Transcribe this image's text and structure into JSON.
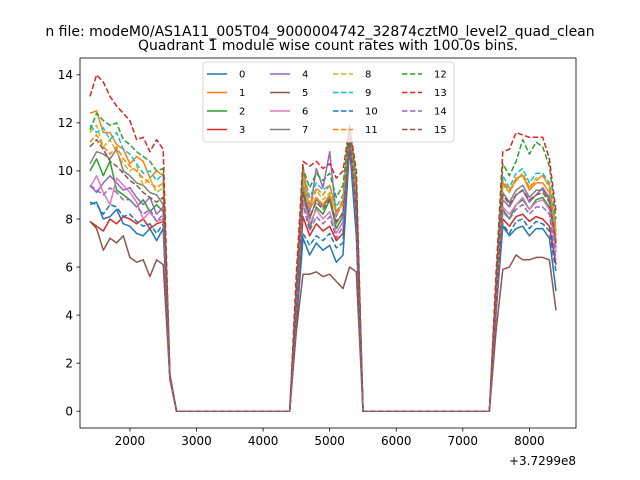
{
  "chart_data": {
    "type": "line",
    "suptitle": "n file: modeM0/AS1A11_005T04_9000004742_32874cztM0_level2_quad_clean",
    "title": "Quadrant 1 module wise count rates with 100.0s bins.",
    "xlabel": "",
    "ylabel": "",
    "x_offset_label": "+3.7299e8",
    "xlim": [
      1250,
      8700
    ],
    "ylim": [
      -0.7,
      14.7
    ],
    "xticks": [
      2000,
      3000,
      4000,
      5000,
      6000,
      7000,
      8000
    ],
    "yticks": [
      0,
      2,
      4,
      6,
      8,
      10,
      12,
      14
    ],
    "grid": false,
    "legend": {
      "position": "upper-center",
      "columns": 4
    },
    "x": [
      1400,
      1500,
      1600,
      1700,
      1800,
      1900,
      2000,
      2100,
      2200,
      2300,
      2400,
      2500,
      2600,
      2700,
      2800,
      2900,
      3000,
      3100,
      3200,
      3300,
      3400,
      3500,
      3600,
      3700,
      3800,
      3900,
      4000,
      4100,
      4200,
      4300,
      4400,
      4500,
      4600,
      4700,
      4800,
      4900,
      5000,
      5100,
      5200,
      5300,
      5400,
      5500,
      5600,
      5700,
      5800,
      5900,
      6000,
      6100,
      6200,
      6300,
      6400,
      6500,
      6600,
      6700,
      6800,
      6900,
      7000,
      7100,
      7200,
      7300,
      7400,
      7500,
      7600,
      7700,
      7800,
      7900,
      8000,
      8100,
      8200,
      8300,
      8400
    ],
    "series": [
      {
        "name": "0",
        "color": "#1f77b4",
        "dash": "solid",
        "on1": [
          8.6,
          8.7,
          8.0,
          8.1,
          8.4,
          7.8,
          7.7,
          7.4,
          7.3,
          7.6,
          7.1,
          7.6
        ],
        "on2": [
          6.6,
          7.2,
          6.5,
          7.0,
          6.7,
          6.9,
          6.2,
          6.5,
          11.0,
          7.3
        ],
        "on3": [
          7.5,
          7.7,
          7.3,
          7.6,
          7.7,
          7.3,
          7.6,
          7.6,
          7.2,
          5.0
        ]
      },
      {
        "name": "1",
        "color": "#ff7f0e",
        "dash": "solid",
        "on1": [
          12.4,
          12.5,
          11.6,
          11.6,
          11.1,
          10.9,
          10.3,
          10.6,
          10.4,
          9.7,
          10.0,
          9.8
        ],
        "on2": [
          9.0,
          9.7,
          8.4,
          8.9,
          8.6,
          9.0,
          8.3,
          8.6,
          11.2,
          9.4
        ],
        "on3": [
          9.0,
          9.5,
          9.1,
          9.7,
          9.8,
          9.2,
          9.5,
          9.5,
          9.1,
          7.3
        ]
      },
      {
        "name": "2",
        "color": "#2ca02c",
        "dash": "solid",
        "on1": [
          10.0,
          10.5,
          9.8,
          10.4,
          9.2,
          9.0,
          8.8,
          8.5,
          8.8,
          8.3,
          8.6,
          8.3
        ],
        "on2": [
          7.8,
          9.2,
          7.6,
          8.5,
          8.2,
          8.8,
          7.6,
          8.1,
          11.3,
          8.2
        ],
        "on3": [
          8.2,
          8.4,
          8.0,
          8.6,
          8.8,
          8.4,
          8.8,
          8.9,
          8.5,
          7.0
        ]
      },
      {
        "name": "3",
        "color": "#d62728",
        "dash": "solid",
        "on1": [
          7.9,
          7.7,
          7.5,
          8.0,
          7.8,
          8.1,
          8.0,
          7.8,
          8.0,
          7.6,
          7.8,
          7.9
        ],
        "on2": [
          7.2,
          8.1,
          7.3,
          7.8,
          7.5,
          7.7,
          7.1,
          7.4,
          11.1,
          7.8
        ],
        "on3": [
          7.6,
          8.0,
          7.7,
          8.1,
          8.2,
          7.9,
          8.1,
          8.0,
          7.7,
          6.1
        ]
      },
      {
        "name": "4",
        "color": "#9467bd",
        "dash": "solid",
        "on1": [
          9.4,
          9.1,
          9.5,
          9.8,
          9.5,
          9.2,
          9.3,
          8.9,
          8.6,
          8.9,
          8.2,
          8.5
        ],
        "on2": [
          8.5,
          10.2,
          8.3,
          10.1,
          9.3,
          10.8,
          8.1,
          8.8,
          11.6,
          8.7
        ],
        "on3": [
          8.4,
          8.8,
          8.5,
          9.0,
          9.2,
          8.7,
          9.0,
          9.3,
          8.9,
          6.8
        ]
      },
      {
        "name": "5",
        "color": "#8c564b",
        "dash": "solid",
        "on1": [
          7.9,
          7.6,
          6.7,
          7.2,
          7.0,
          7.3,
          6.4,
          6.2,
          6.3,
          5.6,
          6.3,
          6.1
        ],
        "on2": [
          6.1,
          5.7,
          5.7,
          5.8,
          5.6,
          5.7,
          5.4,
          5.1,
          6.0,
          5.8
        ],
        "on3": [
          6.1,
          5.9,
          6.0,
          6.5,
          6.3,
          6.3,
          6.4,
          6.4,
          6.3,
          4.2
        ]
      },
      {
        "name": "6",
        "color": "#e377c2",
        "dash": "solid",
        "on1": [
          9.3,
          9.8,
          9.1,
          8.6,
          9.7,
          9.4,
          9.1,
          8.7,
          8.0,
          8.3,
          7.9,
          8.0
        ],
        "on2": [
          7.9,
          8.8,
          7.8,
          8.4,
          8.0,
          8.3,
          7.4,
          7.9,
          11.4,
          8.1
        ],
        "on3": [
          8.0,
          8.5,
          8.2,
          8.6,
          8.9,
          8.4,
          8.7,
          8.8,
          8.4,
          6.6
        ]
      },
      {
        "name": "7",
        "color": "#7f7f7f",
        "dash": "solid",
        "on1": [
          10.3,
          10.8,
          10.7,
          10.5,
          10.9,
          10.0,
          9.8,
          9.5,
          9.4,
          9.1,
          9.0,
          8.6
        ],
        "on2": [
          8.2,
          9.4,
          8.0,
          8.8,
          8.5,
          8.9,
          7.8,
          8.3,
          11.5,
          8.6
        ],
        "on3": [
          8.8,
          9.1,
          8.7,
          9.2,
          9.4,
          8.9,
          9.2,
          9.2,
          8.8,
          7.1
        ]
      },
      {
        "name": "8",
        "color": "#bcbd22",
        "dash": "dashed",
        "on1": [
          11.6,
          11.9,
          11.0,
          11.3,
          10.8,
          10.3,
          10.0,
          10.2,
          9.4,
          9.7,
          9.1,
          9.3
        ],
        "on2": [
          8.7,
          9.6,
          8.5,
          9.2,
          8.8,
          9.1,
          8.2,
          8.7,
          11.5,
          9.0
        ],
        "on3": [
          9.3,
          9.4,
          9.1,
          9.6,
          9.8,
          9.3,
          9.7,
          9.8,
          9.3,
          7.5
        ]
      },
      {
        "name": "9",
        "color": "#17becf",
        "dash": "dashed",
        "on1": [
          11.9,
          11.6,
          11.8,
          11.3,
          11.6,
          10.9,
          10.7,
          10.3,
          9.9,
          10.0,
          9.6,
          9.9
        ],
        "on2": [
          9.1,
          10.0,
          8.9,
          9.5,
          9.2,
          9.4,
          8.5,
          9.0,
          11.8,
          9.3
        ],
        "on3": [
          9.3,
          9.8,
          9.3,
          9.9,
          10.1,
          9.5,
          9.9,
          9.9,
          9.5,
          7.7
        ]
      },
      {
        "name": "10",
        "color": "#1f77b4",
        "dash": "dashed",
        "on1": [
          8.7,
          8.6,
          8.2,
          8.6,
          8.5,
          8.1,
          8.2,
          7.9,
          7.7,
          7.8,
          7.4,
          7.8
        ],
        "on2": [
          7.2,
          7.4,
          6.9,
          7.3,
          7.1,
          7.4,
          6.8,
          7.0,
          11.1,
          7.6
        ],
        "on3": [
          7.9,
          7.8,
          7.4,
          7.9,
          8.0,
          7.6,
          7.9,
          7.8,
          7.5,
          5.8
        ]
      },
      {
        "name": "11",
        "color": "#ff7f0e",
        "dash": "dashed",
        "on1": [
          11.2,
          11.5,
          11.0,
          10.7,
          11.0,
          10.5,
          10.2,
          10.0,
          9.7,
          9.5,
          9.3,
          9.5
        ],
        "on2": [
          8.7,
          10.1,
          8.6,
          9.3,
          9.0,
          9.4,
          8.3,
          8.8,
          11.7,
          9.2
        ],
        "on3": [
          9.1,
          9.6,
          9.2,
          9.6,
          9.9,
          9.3,
          9.6,
          9.8,
          9.4,
          7.6
        ]
      },
      {
        "name": "12",
        "color": "#2ca02c",
        "dash": "dashed",
        "on1": [
          11.7,
          12.4,
          12.1,
          11.9,
          12.0,
          11.3,
          11.1,
          10.8,
          10.6,
          10.4,
          10.0,
          10.1
        ],
        "on2": [
          9.6,
          10.1,
          9.3,
          9.9,
          9.6,
          9.9,
          8.9,
          9.4,
          11.9,
          9.6
        ],
        "on3": [
          9.8,
          10.3,
          9.8,
          10.4,
          11.3,
          10.7,
          11.2,
          11.0,
          10.2,
          8.0
        ]
      },
      {
        "name": "13",
        "color": "#d62728",
        "dash": "dashed",
        "on1": [
          13.1,
          14.0,
          13.7,
          13.1,
          12.7,
          12.4,
          12.1,
          11.3,
          11.4,
          10.8,
          11.3,
          10.9
        ],
        "on2": [
          10.5,
          10.4,
          10.2,
          10.4,
          10.1,
          10.3,
          9.7,
          10.0,
          11.9,
          10.0
        ],
        "on3": [
          10.5,
          10.8,
          10.9,
          11.6,
          11.5,
          11.4,
          11.4,
          11.4,
          10.5,
          8.3
        ]
      },
      {
        "name": "14",
        "color": "#9467bd",
        "dash": "dashed",
        "on1": [
          9.4,
          9.2,
          9.0,
          9.3,
          9.1,
          8.8,
          8.8,
          8.5,
          8.2,
          8.4,
          7.9,
          8.2
        ],
        "on2": [
          7.6,
          8.6,
          7.5,
          8.1,
          7.8,
          8.1,
          7.2,
          7.7,
          11.3,
          7.9
        ],
        "on3": [
          8.0,
          8.3,
          8.0,
          8.4,
          8.6,
          8.2,
          8.5,
          8.5,
          8.2,
          6.3
        ]
      },
      {
        "name": "15",
        "color": "#8c564b",
        "dash": "dashed",
        "on1": [
          11.0,
          11.3,
          10.9,
          10.4,
          10.2,
          9.9,
          9.6,
          9.4,
          9.1,
          8.9,
          8.7,
          8.9
        ],
        "on2": [
          8.3,
          9.1,
          8.1,
          8.7,
          8.4,
          8.8,
          7.9,
          8.2,
          11.4,
          8.5
        ],
        "on3": [
          8.5,
          9.0,
          8.6,
          9.0,
          9.2,
          8.8,
          9.0,
          9.1,
          8.7,
          7.0
        ]
      }
    ]
  }
}
